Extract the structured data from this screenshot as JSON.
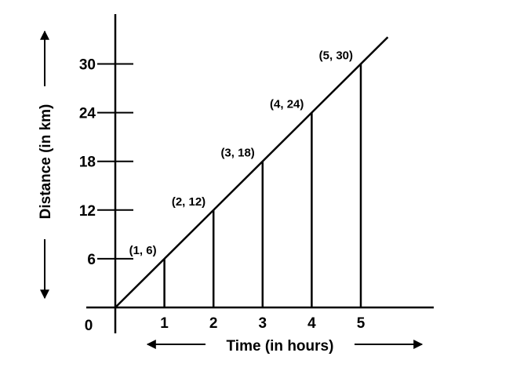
{
  "chart_data": {
    "type": "line",
    "xlabel": "Time (in hours)",
    "ylabel": "Distance (in km)",
    "origin_label": "0",
    "x_ticks": [
      "1",
      "2",
      "3",
      "4",
      "5"
    ],
    "y_ticks": [
      "6",
      "12",
      "18",
      "24",
      "30"
    ],
    "xlim": [
      0,
      5.6
    ],
    "ylim": [
      0,
      34
    ],
    "points": [
      {
        "x": 1,
        "y": 6,
        "label": "(1, 6)"
      },
      {
        "x": 2,
        "y": 12,
        "label": "(2, 12)"
      },
      {
        "x": 3,
        "y": 18,
        "label": "(3, 18)"
      },
      {
        "x": 4,
        "y": 24,
        "label": "(4, 24)"
      },
      {
        "x": 5,
        "y": 30,
        "label": "(5, 30)"
      }
    ],
    "grid": false,
    "color": "#000000"
  }
}
